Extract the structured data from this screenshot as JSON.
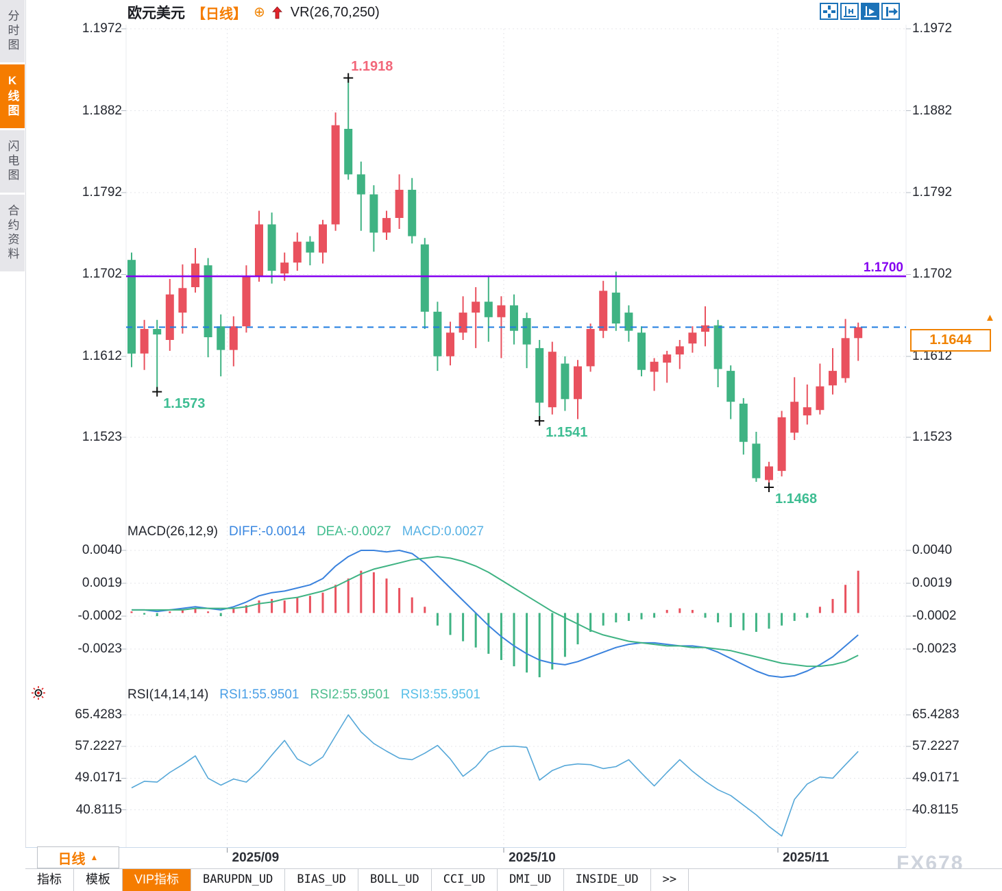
{
  "header": {
    "symbol": "欧元美元",
    "period_tag": "【日线】",
    "indicator": "VR(26,70,250)"
  },
  "icons": {
    "circle_plus": "⊕",
    "tag_arrow": "▲",
    "period_arrow": "▲",
    "more_tabs": ">>"
  },
  "sidebar": {
    "tabs": [
      {
        "label": "分时图",
        "active": false
      },
      {
        "label": "K线图",
        "active": true
      },
      {
        "label": "闪电图",
        "active": false
      },
      {
        "label": "合约资料",
        "active": false
      }
    ]
  },
  "toolbar": {
    "buttons": [
      "move-crosshair",
      "axis-zoom",
      "axis-play",
      "pan-right"
    ],
    "active_index": 2
  },
  "macd_header": {
    "title": "MACD(26,12,9)",
    "diff": "DIFF:-0.0014",
    "dea": "DEA:-0.0027",
    "macd": "MACD:0.0027"
  },
  "rsi_header": {
    "title": "RSI(14,14,14)",
    "rsi1": "RSI1:55.9501",
    "rsi2": "RSI2:55.9501",
    "rsi3": "RSI3:55.9501"
  },
  "annotations": {
    "hline_label": "1.1700",
    "last_price_label": "1.1644"
  },
  "period_selector": {
    "label": "日线"
  },
  "bottom_tabs": {
    "items": [
      "指标",
      "模板",
      "VIP指标",
      "BARUPDN_UD",
      "BIAS_UD",
      "BOLL_UD",
      "CCI_UD",
      "DMI_UD",
      "INSIDE_UD",
      ">>"
    ],
    "active": "VIP指标"
  },
  "watermark": "FX678",
  "colors": {
    "up": "#e9515e",
    "down": "#3fb383",
    "purple_line": "#8400f0",
    "dashed_line": "#1f7ce0",
    "accent_orange": "#f08200",
    "diff_blue": "#3a82dd",
    "dea_green": "#3fb383",
    "rsi_blue": "#55a7d8",
    "grid": "#e4e6ea",
    "axis_text": "#23262e"
  },
  "chart_data": {
    "type": "candlestick",
    "title": "欧元美元 日线",
    "y_axis_ticks": [
      1.1972,
      1.1882,
      1.1792,
      1.1702,
      1.1612,
      1.1523
    ],
    "hline_purple": 1.17,
    "last_price": 1.1644,
    "months": [
      {
        "label": "2025/09",
        "x_index": 7.5
      },
      {
        "label": "2025/10",
        "x_index": 29.2
      },
      {
        "label": "2025/11",
        "x_index": 50.7
      }
    ],
    "high_marker": {
      "index": 17,
      "label": "1.1918"
    },
    "low_markers": [
      {
        "index": 2,
        "label": "1.1573"
      },
      {
        "index": 32,
        "label": "1.1541"
      },
      {
        "index": 50,
        "label": "1.1468"
      }
    ],
    "candles": {
      "open": [
        1.1718,
        1.1615,
        1.1642,
        1.163,
        1.166,
        1.1688,
        1.1712,
        1.1645,
        1.1619,
        1.1645,
        1.17,
        1.1757,
        1.1703,
        1.1715,
        1.1738,
        1.1726,
        1.1757,
        1.1862,
        1.1812,
        1.179,
        1.1748,
        1.1764,
        1.1795,
        1.1735,
        1.1661,
        1.1612,
        1.1638,
        1.166,
        1.1672,
        1.1655,
        1.1668,
        1.1654,
        1.1621,
        1.1556,
        1.1604,
        1.1565,
        1.1601,
        1.164,
        1.1682,
        1.166,
        1.1638,
        1.1595,
        1.1605,
        1.1614,
        1.1626,
        1.1639,
        1.1646,
        1.1596,
        1.156,
        1.1516,
        1.1476,
        1.1486,
        1.1528,
        1.1547,
        1.1553,
        1.158,
        1.1588,
        1.1632
      ],
      "high": [
        1.1726,
        1.1652,
        1.1652,
        1.1697,
        1.1713,
        1.1731,
        1.172,
        1.1658,
        1.1656,
        1.1712,
        1.1772,
        1.177,
        1.1726,
        1.1748,
        1.1744,
        1.1762,
        1.188,
        1.1918,
        1.1826,
        1.18,
        1.1772,
        1.1812,
        1.1808,
        1.1742,
        1.1672,
        1.165,
        1.1678,
        1.1688,
        1.17,
        1.1678,
        1.168,
        1.166,
        1.163,
        1.1628,
        1.1612,
        1.1608,
        1.1648,
        1.1695,
        1.1705,
        1.1668,
        1.1645,
        1.161,
        1.1618,
        1.163,
        1.1645,
        1.1667,
        1.1652,
        1.1602,
        1.1566,
        1.1529,
        1.1496,
        1.1552,
        1.1589,
        1.1581,
        1.1604,
        1.1621,
        1.1653,
        1.1649
      ],
      "low": [
        1.16,
        1.1597,
        1.1573,
        1.1618,
        1.1637,
        1.1682,
        1.1611,
        1.159,
        1.1601,
        1.1638,
        1.1694,
        1.1692,
        1.1695,
        1.1706,
        1.1712,
        1.1714,
        1.175,
        1.1806,
        1.175,
        1.1727,
        1.174,
        1.1752,
        1.1736,
        1.1642,
        1.1596,
        1.1602,
        1.163,
        1.1621,
        1.1628,
        1.161,
        1.1625,
        1.1599,
        1.1541,
        1.1548,
        1.1552,
        1.1543,
        1.1595,
        1.1632,
        1.164,
        1.1628,
        1.159,
        1.1574,
        1.1583,
        1.1598,
        1.1616,
        1.1623,
        1.1578,
        1.1543,
        1.1504,
        1.1474,
        1.1468,
        1.148,
        1.152,
        1.1537,
        1.1548,
        1.157,
        1.1583,
        1.1607
      ],
      "close": [
        1.1615,
        1.1642,
        1.1636,
        1.168,
        1.1687,
        1.1714,
        1.1633,
        1.1619,
        1.1645,
        1.17,
        1.1757,
        1.1706,
        1.1715,
        1.1738,
        1.1726,
        1.1757,
        1.1866,
        1.1812,
        1.179,
        1.1748,
        1.1764,
        1.1795,
        1.1744,
        1.1661,
        1.1612,
        1.1638,
        1.166,
        1.1672,
        1.1655,
        1.1668,
        1.164,
        1.1625,
        1.1561,
        1.1617,
        1.1565,
        1.1601,
        1.1642,
        1.1684,
        1.1648,
        1.164,
        1.1597,
        1.1606,
        1.1614,
        1.1623,
        1.1638,
        1.1646,
        1.1598,
        1.1562,
        1.1518,
        1.1478,
        1.1491,
        1.1545,
        1.1562,
        1.1556,
        1.1579,
        1.1596,
        1.1632,
        1.1644
      ]
    },
    "macd": {
      "ticks": [
        0.004,
        0.0019,
        -0.0002,
        -0.0023
      ],
      "diff": [
        0.0002,
        0.0002,
        0.0001,
        0.0002,
        0.0003,
        0.0004,
        0.0003,
        0.0002,
        0.0004,
        0.0007,
        0.0011,
        0.0013,
        0.0014,
        0.0016,
        0.0018,
        0.0022,
        0.003,
        0.0036,
        0.004,
        0.004,
        0.0039,
        0.004,
        0.0038,
        0.0032,
        0.0024,
        0.0016,
        0.0008,
        0.0,
        -0.0008,
        -0.0015,
        -0.0021,
        -0.0026,
        -0.003,
        -0.0032,
        -0.0033,
        -0.0031,
        -0.0028,
        -0.0025,
        -0.0022,
        -0.002,
        -0.0019,
        -0.0019,
        -0.002,
        -0.0021,
        -0.0021,
        -0.0022,
        -0.0025,
        -0.0029,
        -0.0033,
        -0.0037,
        -0.004,
        -0.0041,
        -0.004,
        -0.0037,
        -0.0033,
        -0.0028,
        -0.0021,
        -0.0014
      ],
      "dea": [
        0.0002,
        0.0002,
        0.0002,
        0.0002,
        0.0002,
        0.0003,
        0.0003,
        0.0003,
        0.0003,
        0.0004,
        0.0006,
        0.0007,
        0.0009,
        0.001,
        0.0012,
        0.0014,
        0.0017,
        0.0021,
        0.0025,
        0.0028,
        0.003,
        0.0032,
        0.0034,
        0.0035,
        0.0036,
        0.0035,
        0.0033,
        0.003,
        0.0026,
        0.0021,
        0.0016,
        0.0011,
        0.0006,
        0.0001,
        -0.0003,
        -0.0007,
        -0.0011,
        -0.0014,
        -0.0016,
        -0.0018,
        -0.0019,
        -0.002,
        -0.0021,
        -0.0021,
        -0.0022,
        -0.0022,
        -0.0023,
        -0.0024,
        -0.0026,
        -0.0028,
        -0.003,
        -0.0032,
        -0.0033,
        -0.0034,
        -0.0034,
        -0.0033,
        -0.0031,
        -0.0027
      ],
      "hist": [
        0.0001,
        -0.0001,
        -0.0002,
        0.0001,
        0.0002,
        0.0003,
        0.0001,
        -0.0002,
        0.0003,
        0.0005,
        0.0008,
        0.0009,
        0.0008,
        0.001,
        0.0011,
        0.0013,
        0.0018,
        0.0022,
        0.0027,
        0.0026,
        0.0022,
        0.0016,
        0.001,
        0.0004,
        -0.0008,
        -0.0014,
        -0.0018,
        -0.0022,
        -0.0026,
        -0.003,
        -0.0034,
        -0.0038,
        -0.0041,
        -0.0036,
        -0.0028,
        -0.002,
        -0.0012,
        -0.0008,
        -0.0006,
        -0.0005,
        -0.0004,
        -0.0003,
        0.0002,
        0.0003,
        0.0002,
        -0.0003,
        -0.0006,
        -0.0009,
        -0.0011,
        -0.0012,
        -0.001,
        -0.0008,
        -0.0005,
        -0.0003,
        0.0004,
        0.0009,
        0.0018,
        0.0027
      ]
    },
    "rsi": {
      "ticks": [
        65.4283,
        57.2227,
        49.0171,
        40.8115
      ],
      "values": [
        46.5,
        48.2,
        48.0,
        50.5,
        52.5,
        54.8,
        49.0,
        47.2,
        48.8,
        48.0,
        51.0,
        55.0,
        58.8,
        54.0,
        52.3,
        54.5,
        60.0,
        65.4283,
        61.0,
        58.0,
        56.0,
        54.2,
        53.8,
        55.5,
        57.5,
        54.0,
        49.5,
        52.0,
        55.8,
        57.2,
        57.3,
        57.0,
        48.5,
        51.0,
        52.3,
        52.7,
        52.5,
        51.5,
        52.0,
        53.8,
        50.3,
        47.0,
        50.5,
        53.8,
        50.8,
        48.2,
        46.0,
        44.5,
        42.0,
        39.5,
        36.5,
        34.0,
        43.5,
        47.5,
        49.3,
        49.0,
        52.5,
        55.9501
      ]
    }
  }
}
